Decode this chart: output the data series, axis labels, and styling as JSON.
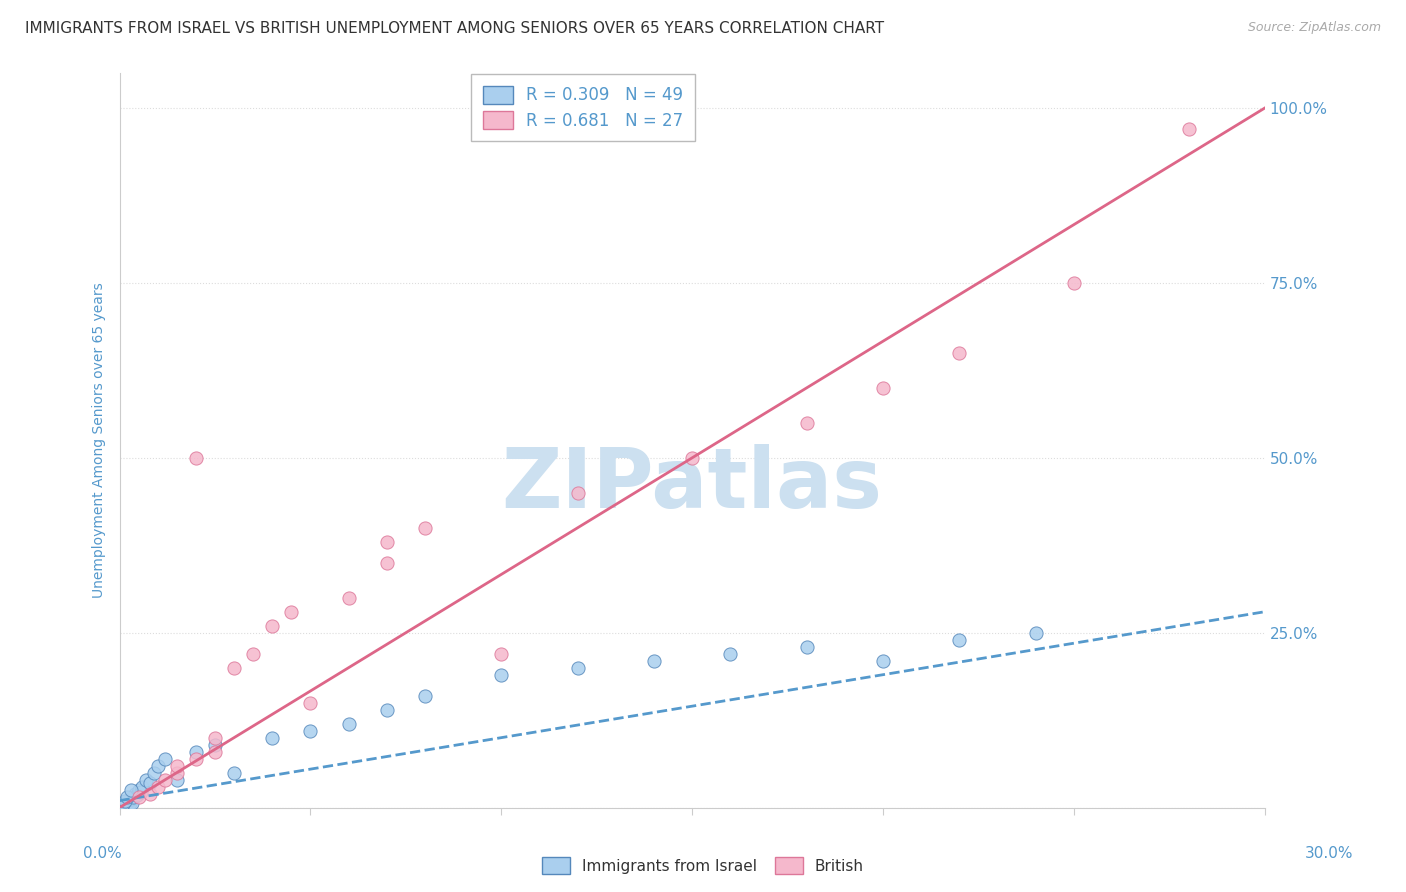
{
  "title": "IMMIGRANTS FROM ISRAEL VS BRITISH UNEMPLOYMENT AMONG SENIORS OVER 65 YEARS CORRELATION CHART",
  "source": "Source: ZipAtlas.com",
  "ylabel": "Unemployment Among Seniors over 65 years",
  "legend_blue_label": "R = 0.309   N = 49",
  "legend_pink_label": "R = 0.681   N = 27",
  "legend_label_blue": "Immigrants from Israel",
  "legend_label_pink": "British",
  "watermark": "ZIPatlas",
  "blue_color": "#aacfee",
  "pink_color": "#f5b8cc",
  "blue_edge_color": "#5588bb",
  "pink_edge_color": "#dd7799",
  "blue_line_color": "#5599cc",
  "pink_line_color": "#dd6688",
  "title_color": "#333333",
  "axis_color": "#5599cc",
  "grid_color": "#dddddd",
  "watermark_color": "#cce0f0",
  "background_color": "#ffffff",
  "xtick_label_left": "0.0%",
  "xtick_label_right": "30.0%",
  "ytick_labels_right": [
    "25.0%",
    "50.0%",
    "75.0%",
    "100.0%"
  ],
  "xmin": 0.0,
  "xmax": 30.0,
  "ymin": 0.0,
  "ymax": 105.0,
  "blue_scatter_x": [
    0.05,
    0.07,
    0.08,
    0.1,
    0.12,
    0.13,
    0.14,
    0.15,
    0.16,
    0.17,
    0.18,
    0.2,
    0.22,
    0.25,
    0.28,
    0.3,
    0.32,
    0.35,
    0.4,
    0.45,
    0.5,
    0.55,
    0.6,
    0.7,
    0.8,
    0.9,
    1.0,
    1.2,
    1.5,
    2.0,
    2.5,
    3.0,
    4.0,
    5.0,
    6.0,
    7.0,
    8.0,
    10.0,
    12.0,
    14.0,
    16.0,
    18.0,
    20.0,
    22.0,
    24.0,
    0.1,
    0.15,
    0.2,
    0.3
  ],
  "blue_scatter_y": [
    0.2,
    0.3,
    0.1,
    0.4,
    0.3,
    0.5,
    0.2,
    0.6,
    0.4,
    0.7,
    0.3,
    0.8,
    0.5,
    1.0,
    0.7,
    1.2,
    0.6,
    1.5,
    2.0,
    1.8,
    2.5,
    2.2,
    3.0,
    4.0,
    3.5,
    5.0,
    6.0,
    7.0,
    4.0,
    8.0,
    9.0,
    5.0,
    10.0,
    11.0,
    12.0,
    14.0,
    16.0,
    19.0,
    20.0,
    21.0,
    22.0,
    23.0,
    21.0,
    24.0,
    25.0,
    0.5,
    0.9,
    1.5,
    2.5
  ],
  "pink_scatter_x": [
    0.5,
    0.8,
    1.0,
    1.2,
    1.5,
    2.0,
    2.5,
    3.0,
    3.5,
    4.0,
    5.0,
    6.0,
    7.0,
    8.0,
    10.0,
    12.0,
    15.0,
    18.0,
    20.0,
    22.0,
    25.0,
    28.0,
    1.5,
    2.5,
    4.5,
    7.0,
    2.0
  ],
  "pink_scatter_y": [
    1.5,
    2.0,
    3.0,
    4.0,
    5.0,
    7.0,
    8.0,
    20.0,
    22.0,
    26.0,
    15.0,
    30.0,
    35.0,
    40.0,
    22.0,
    45.0,
    50.0,
    55.0,
    60.0,
    65.0,
    75.0,
    97.0,
    6.0,
    10.0,
    28.0,
    38.0,
    50.0
  ],
  "blue_trend_x": [
    0,
    30
  ],
  "blue_trend_y": [
    1.0,
    28.0
  ],
  "pink_trend_x": [
    0,
    30
  ],
  "pink_trend_y": [
    0.0,
    100.0
  ]
}
